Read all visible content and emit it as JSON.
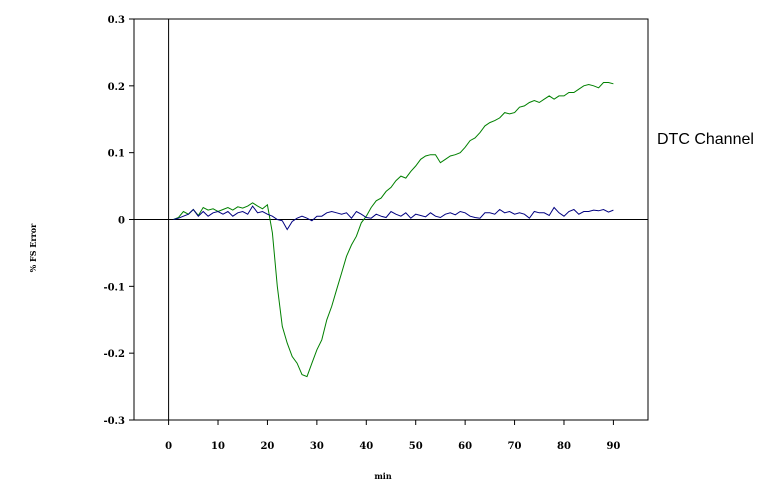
{
  "chart_data": {
    "type": "line",
    "title": "",
    "xlabel": "min",
    "ylabel": "% FS Error",
    "xlim": [
      -7,
      97
    ],
    "ylim": [
      -0.3,
      0.3
    ],
    "x_ticks": [
      0,
      10,
      20,
      30,
      40,
      50,
      60,
      70,
      80,
      90
    ],
    "x_tick_labels": [
      "0",
      "10",
      "20",
      "30",
      "40",
      "50",
      "60",
      "70",
      "80",
      "90"
    ],
    "y_ticks": [
      0.3,
      0.2,
      0.1,
      0,
      -0.1,
      -0.2,
      -0.3
    ],
    "y_tick_labels": [
      "0.3",
      "0.2",
      "0.1",
      "0",
      "-0.1",
      "-0.2",
      "-0.3"
    ],
    "grid": false,
    "annotations": [
      {
        "text": "DTC Channel"
      }
    ],
    "series": [
      {
        "color": "#008000",
        "x": [
          1,
          2,
          3,
          4,
          5,
          6,
          7,
          8,
          9,
          10,
          11,
          12,
          13,
          14,
          15,
          16,
          17,
          18,
          19,
          20,
          21,
          22,
          23,
          24,
          25,
          26,
          27,
          28,
          29,
          30,
          31,
          32,
          33,
          34,
          35,
          36,
          37,
          38,
          39,
          40,
          41,
          42,
          43,
          44,
          45,
          46,
          47,
          48,
          49,
          50,
          51,
          52,
          53,
          54,
          55,
          56,
          57,
          58,
          59,
          60,
          61,
          62,
          63,
          64,
          65,
          66,
          67,
          68,
          69,
          70,
          71,
          72,
          73,
          74,
          75,
          76,
          77,
          78,
          79,
          80,
          81,
          82,
          83,
          84,
          85,
          86,
          87,
          88,
          89,
          90
        ],
        "values": [
          0.0,
          0.003,
          0.012,
          0.008,
          0.015,
          0.006,
          0.018,
          0.014,
          0.016,
          0.012,
          0.015,
          0.018,
          0.014,
          0.019,
          0.017,
          0.02,
          0.025,
          0.02,
          0.016,
          0.022,
          -0.02,
          -0.1,
          -0.16,
          -0.185,
          -0.205,
          -0.215,
          -0.232,
          -0.235,
          -0.215,
          -0.195,
          -0.18,
          -0.15,
          -0.13,
          -0.105,
          -0.08,
          -0.055,
          -0.038,
          -0.025,
          -0.005,
          0.005,
          0.018,
          0.028,
          0.032,
          0.042,
          0.048,
          0.058,
          0.065,
          0.062,
          0.072,
          0.08,
          0.09,
          0.095,
          0.097,
          0.097,
          0.085,
          0.09,
          0.095,
          0.097,
          0.1,
          0.108,
          0.118,
          0.122,
          0.13,
          0.14,
          0.145,
          0.148,
          0.152,
          0.16,
          0.158,
          0.16,
          0.168,
          0.17,
          0.175,
          0.178,
          0.175,
          0.18,
          0.185,
          0.18,
          0.185,
          0.185,
          0.19,
          0.19,
          0.195,
          0.2,
          0.202,
          0.2,
          0.197,
          0.205,
          0.205,
          0.203
        ]
      },
      {
        "color": "#000080",
        "x": [
          1,
          2,
          3,
          4,
          5,
          6,
          7,
          8,
          9,
          10,
          11,
          12,
          13,
          14,
          15,
          16,
          17,
          18,
          19,
          20,
          21,
          22,
          23,
          24,
          25,
          26,
          27,
          28,
          29,
          30,
          31,
          32,
          33,
          34,
          35,
          36,
          37,
          38,
          39,
          40,
          41,
          42,
          43,
          44,
          45,
          46,
          47,
          48,
          49,
          50,
          51,
          52,
          53,
          54,
          55,
          56,
          57,
          58,
          59,
          60,
          61,
          62,
          63,
          64,
          65,
          66,
          67,
          68,
          69,
          70,
          71,
          72,
          73,
          74,
          75,
          76,
          77,
          78,
          79,
          80,
          81,
          82,
          83,
          84,
          85,
          86,
          87,
          88,
          89,
          90
        ],
        "values": [
          0.0,
          0.002,
          0.005,
          0.008,
          0.015,
          0.005,
          0.012,
          0.005,
          0.01,
          0.012,
          0.008,
          0.012,
          0.005,
          0.01,
          0.012,
          0.008,
          0.02,
          0.01,
          0.012,
          0.008,
          0.005,
          0.0,
          -0.002,
          -0.015,
          -0.003,
          0.002,
          0.005,
          0.002,
          -0.002,
          0.005,
          0.005,
          0.01,
          0.012,
          0.01,
          0.008,
          0.01,
          0.002,
          0.012,
          0.008,
          0.003,
          0.002,
          0.008,
          0.005,
          0.003,
          0.012,
          0.008,
          0.005,
          0.01,
          0.002,
          0.008,
          0.006,
          0.004,
          0.01,
          0.005,
          0.003,
          0.008,
          0.01,
          0.007,
          0.012,
          0.01,
          0.005,
          0.003,
          0.002,
          0.01,
          0.01,
          0.008,
          0.015,
          0.01,
          0.012,
          0.008,
          0.01,
          0.008,
          0.002,
          0.012,
          0.01,
          0.01,
          0.006,
          0.018,
          0.01,
          0.005,
          0.012,
          0.015,
          0.008,
          0.012,
          0.012,
          0.014,
          0.013,
          0.015,
          0.011,
          0.014
        ]
      }
    ]
  }
}
